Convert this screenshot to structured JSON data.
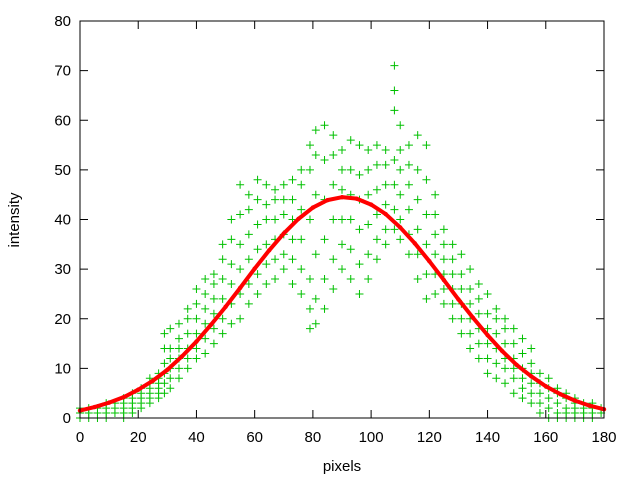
{
  "chart_data": {
    "type": "scatter",
    "title": "",
    "xlabel": "pixels",
    "ylabel": "intensity",
    "xlim": [
      0,
      180
    ],
    "ylim": [
      0,
      80
    ],
    "xticks": [
      "0",
      "20",
      "40",
      "60",
      "80",
      "100",
      "120",
      "140",
      "160",
      "180"
    ],
    "yticks": [
      "0",
      "10",
      "20",
      "30",
      "40",
      "50",
      "60",
      "70",
      "80"
    ],
    "grid": false,
    "legend": "none",
    "colors": {
      "scatter": "#00c000",
      "fit": "#ff0000",
      "axes": "#000000"
    },
    "series": [
      {
        "type": "scatter",
        "marker": "plus",
        "columns": [
          {
            "x": 0,
            "y": [
              0,
              1,
              2
            ]
          },
          {
            "x": 3,
            "y": [
              0,
              1,
              2
            ]
          },
          {
            "x": 6,
            "y": [
              0,
              1,
              2
            ]
          },
          {
            "x": 9,
            "y": [
              0,
              1,
              2,
              3
            ]
          },
          {
            "x": 12,
            "y": [
              1,
              2,
              3
            ]
          },
          {
            "x": 15,
            "y": [
              0,
              1,
              2,
              3,
              4
            ]
          },
          {
            "x": 18,
            "y": [
              1,
              2,
              3,
              4,
              5
            ]
          },
          {
            "x": 21,
            "y": [
              2,
              3,
              4,
              5,
              6
            ]
          },
          {
            "x": 24,
            "y": [
              3,
              4,
              5,
              6,
              7,
              8
            ]
          },
          {
            "x": 27,
            "y": [
              4,
              5,
              6,
              7,
              8,
              9
            ]
          },
          {
            "x": 29,
            "y": [
              5,
              7,
              9,
              11,
              14,
              17
            ]
          },
          {
            "x": 31,
            "y": [
              6,
              8,
              10,
              12,
              14,
              18
            ]
          },
          {
            "x": 34,
            "y": [
              8,
              10,
              12,
              14,
              16,
              19
            ]
          },
          {
            "x": 37,
            "y": [
              10,
              12,
              14,
              17,
              20,
              22
            ]
          },
          {
            "x": 40,
            "y": [
              12,
              14,
              17,
              20,
              23,
              26
            ]
          },
          {
            "x": 43,
            "y": [
              13,
              16,
              19,
              22,
              25,
              28
            ]
          },
          {
            "x": 46,
            "y": [
              15,
              18,
              21,
              24,
              27,
              29
            ]
          },
          {
            "x": 49,
            "y": [
              17,
              20,
              24,
              28,
              32,
              35
            ]
          },
          {
            "x": 52,
            "y": [
              19,
              23,
              27,
              31,
              36,
              40
            ]
          },
          {
            "x": 55,
            "y": [
              20,
              25,
              30,
              35,
              41,
              47
            ]
          },
          {
            "x": 58,
            "y": [
              23,
              27,
              32,
              37,
              42,
              45
            ]
          },
          {
            "x": 61,
            "y": [
              25,
              29,
              34,
              39,
              44,
              48
            ]
          },
          {
            "x": 64,
            "y": [
              27,
              31,
              35,
              40,
              43,
              47
            ]
          },
          {
            "x": 67,
            "y": [
              28,
              32,
              36,
              40,
              44,
              46
            ]
          },
          {
            "x": 70,
            "y": [
              30,
              33,
              37,
              41,
              44,
              47
            ]
          },
          {
            "x": 73,
            "y": [
              27,
              32,
              36,
              40,
              44,
              48
            ]
          },
          {
            "x": 76,
            "y": [
              25,
              30,
              36,
              42,
              47,
              50
            ]
          },
          {
            "x": 79,
            "y": [
              18,
              22,
              28,
              40,
              50,
              55
            ]
          },
          {
            "x": 81,
            "y": [
              19,
              24,
              33,
              45,
              53,
              58
            ]
          },
          {
            "x": 84,
            "y": [
              22,
              28,
              36,
              44,
              52,
              59
            ]
          },
          {
            "x": 87,
            "y": [
              26,
              32,
              40,
              47,
              53,
              57
            ]
          },
          {
            "x": 90,
            "y": [
              30,
              35,
              40,
              46,
              50,
              54
            ]
          },
          {
            "x": 93,
            "y": [
              28,
              34,
              40,
              45,
              50,
              56
            ]
          },
          {
            "x": 96,
            "y": [
              25,
              31,
              38,
              44,
              49,
              55
            ]
          },
          {
            "x": 99,
            "y": [
              28,
              33,
              39,
              45,
              50,
              54
            ]
          },
          {
            "x": 102,
            "y": [
              32,
              36,
              41,
              46,
              51,
              55
            ]
          },
          {
            "x": 105,
            "y": [
              35,
              38,
              43,
              47,
              51,
              54
            ]
          },
          {
            "x": 108,
            "y": [
              38,
              42,
              47,
              52,
              62,
              66,
              71
            ]
          },
          {
            "x": 110,
            "y": [
              36,
              40,
              45,
              50,
              54,
              59
            ]
          },
          {
            "x": 113,
            "y": [
              33,
              37,
              42,
              47,
              51,
              55
            ]
          },
          {
            "x": 116,
            "y": [
              28,
              33,
              38,
              44,
              50,
              57
            ]
          },
          {
            "x": 119,
            "y": [
              24,
              29,
              35,
              41,
              48,
              55
            ]
          },
          {
            "x": 122,
            "y": [
              25,
              29,
              33,
              37,
              41,
              45
            ]
          },
          {
            "x": 125,
            "y": [
              23,
              26,
              29,
              32,
              35,
              38
            ]
          },
          {
            "x": 128,
            "y": [
              20,
              23,
              26,
              29,
              32,
              35
            ]
          },
          {
            "x": 131,
            "y": [
              17,
              20,
              23,
              26,
              29,
              33
            ]
          },
          {
            "x": 134,
            "y": [
              14,
              17,
              20,
              23,
              26,
              30
            ]
          },
          {
            "x": 137,
            "y": [
              12,
              15,
              18,
              21,
              24,
              27
            ]
          },
          {
            "x": 140,
            "y": [
              9,
              12,
              15,
              18,
              21,
              25
            ]
          },
          {
            "x": 143,
            "y": [
              8,
              11,
              14,
              17,
              20,
              22
            ]
          },
          {
            "x": 146,
            "y": [
              7,
              10,
              12,
              15,
              18,
              20
            ]
          },
          {
            "x": 149,
            "y": [
              5,
              8,
              10,
              12,
              15,
              18
            ]
          },
          {
            "x": 152,
            "y": [
              4,
              6,
              8,
              10,
              13,
              16
            ]
          },
          {
            "x": 155,
            "y": [
              3,
              5,
              7,
              9,
              11,
              14
            ]
          },
          {
            "x": 158,
            "y": [
              1,
              3,
              5,
              7,
              9
            ]
          },
          {
            "x": 161,
            "y": [
              0,
              2,
              4,
              6,
              8
            ]
          },
          {
            "x": 164,
            "y": [
              0,
              1,
              3,
              5,
              6
            ]
          },
          {
            "x": 167,
            "y": [
              0,
              1,
              2,
              4,
              5
            ]
          },
          {
            "x": 170,
            "y": [
              0,
              1,
              2,
              3,
              4
            ]
          },
          {
            "x": 173,
            "y": [
              0,
              1,
              2,
              3
            ]
          },
          {
            "x": 176,
            "y": [
              0,
              1,
              2,
              3
            ]
          },
          {
            "x": 179,
            "y": [
              1,
              2
            ]
          }
        ]
      },
      {
        "type": "line",
        "x": [
          0,
          5,
          10,
          15,
          20,
          25,
          30,
          35,
          40,
          45,
          50,
          55,
          60,
          65,
          70,
          75,
          80,
          85,
          90,
          95,
          100,
          105,
          110,
          115,
          120,
          125,
          130,
          135,
          140,
          145,
          150,
          155,
          160,
          165,
          170,
          175,
          180
        ],
        "y": [
          1.5,
          2.2,
          3.1,
          4.2,
          5.7,
          7.5,
          9.7,
          12.4,
          15.4,
          18.8,
          22.4,
          26.2,
          30.1,
          33.8,
          37.2,
          40.1,
          42.4,
          43.9,
          44.5,
          44.2,
          43.0,
          41.1,
          38.4,
          35.2,
          31.6,
          27.8,
          23.9,
          20.2,
          16.7,
          13.5,
          10.7,
          8.4,
          6.4,
          4.8,
          3.5,
          2.5,
          1.75
        ]
      }
    ]
  }
}
